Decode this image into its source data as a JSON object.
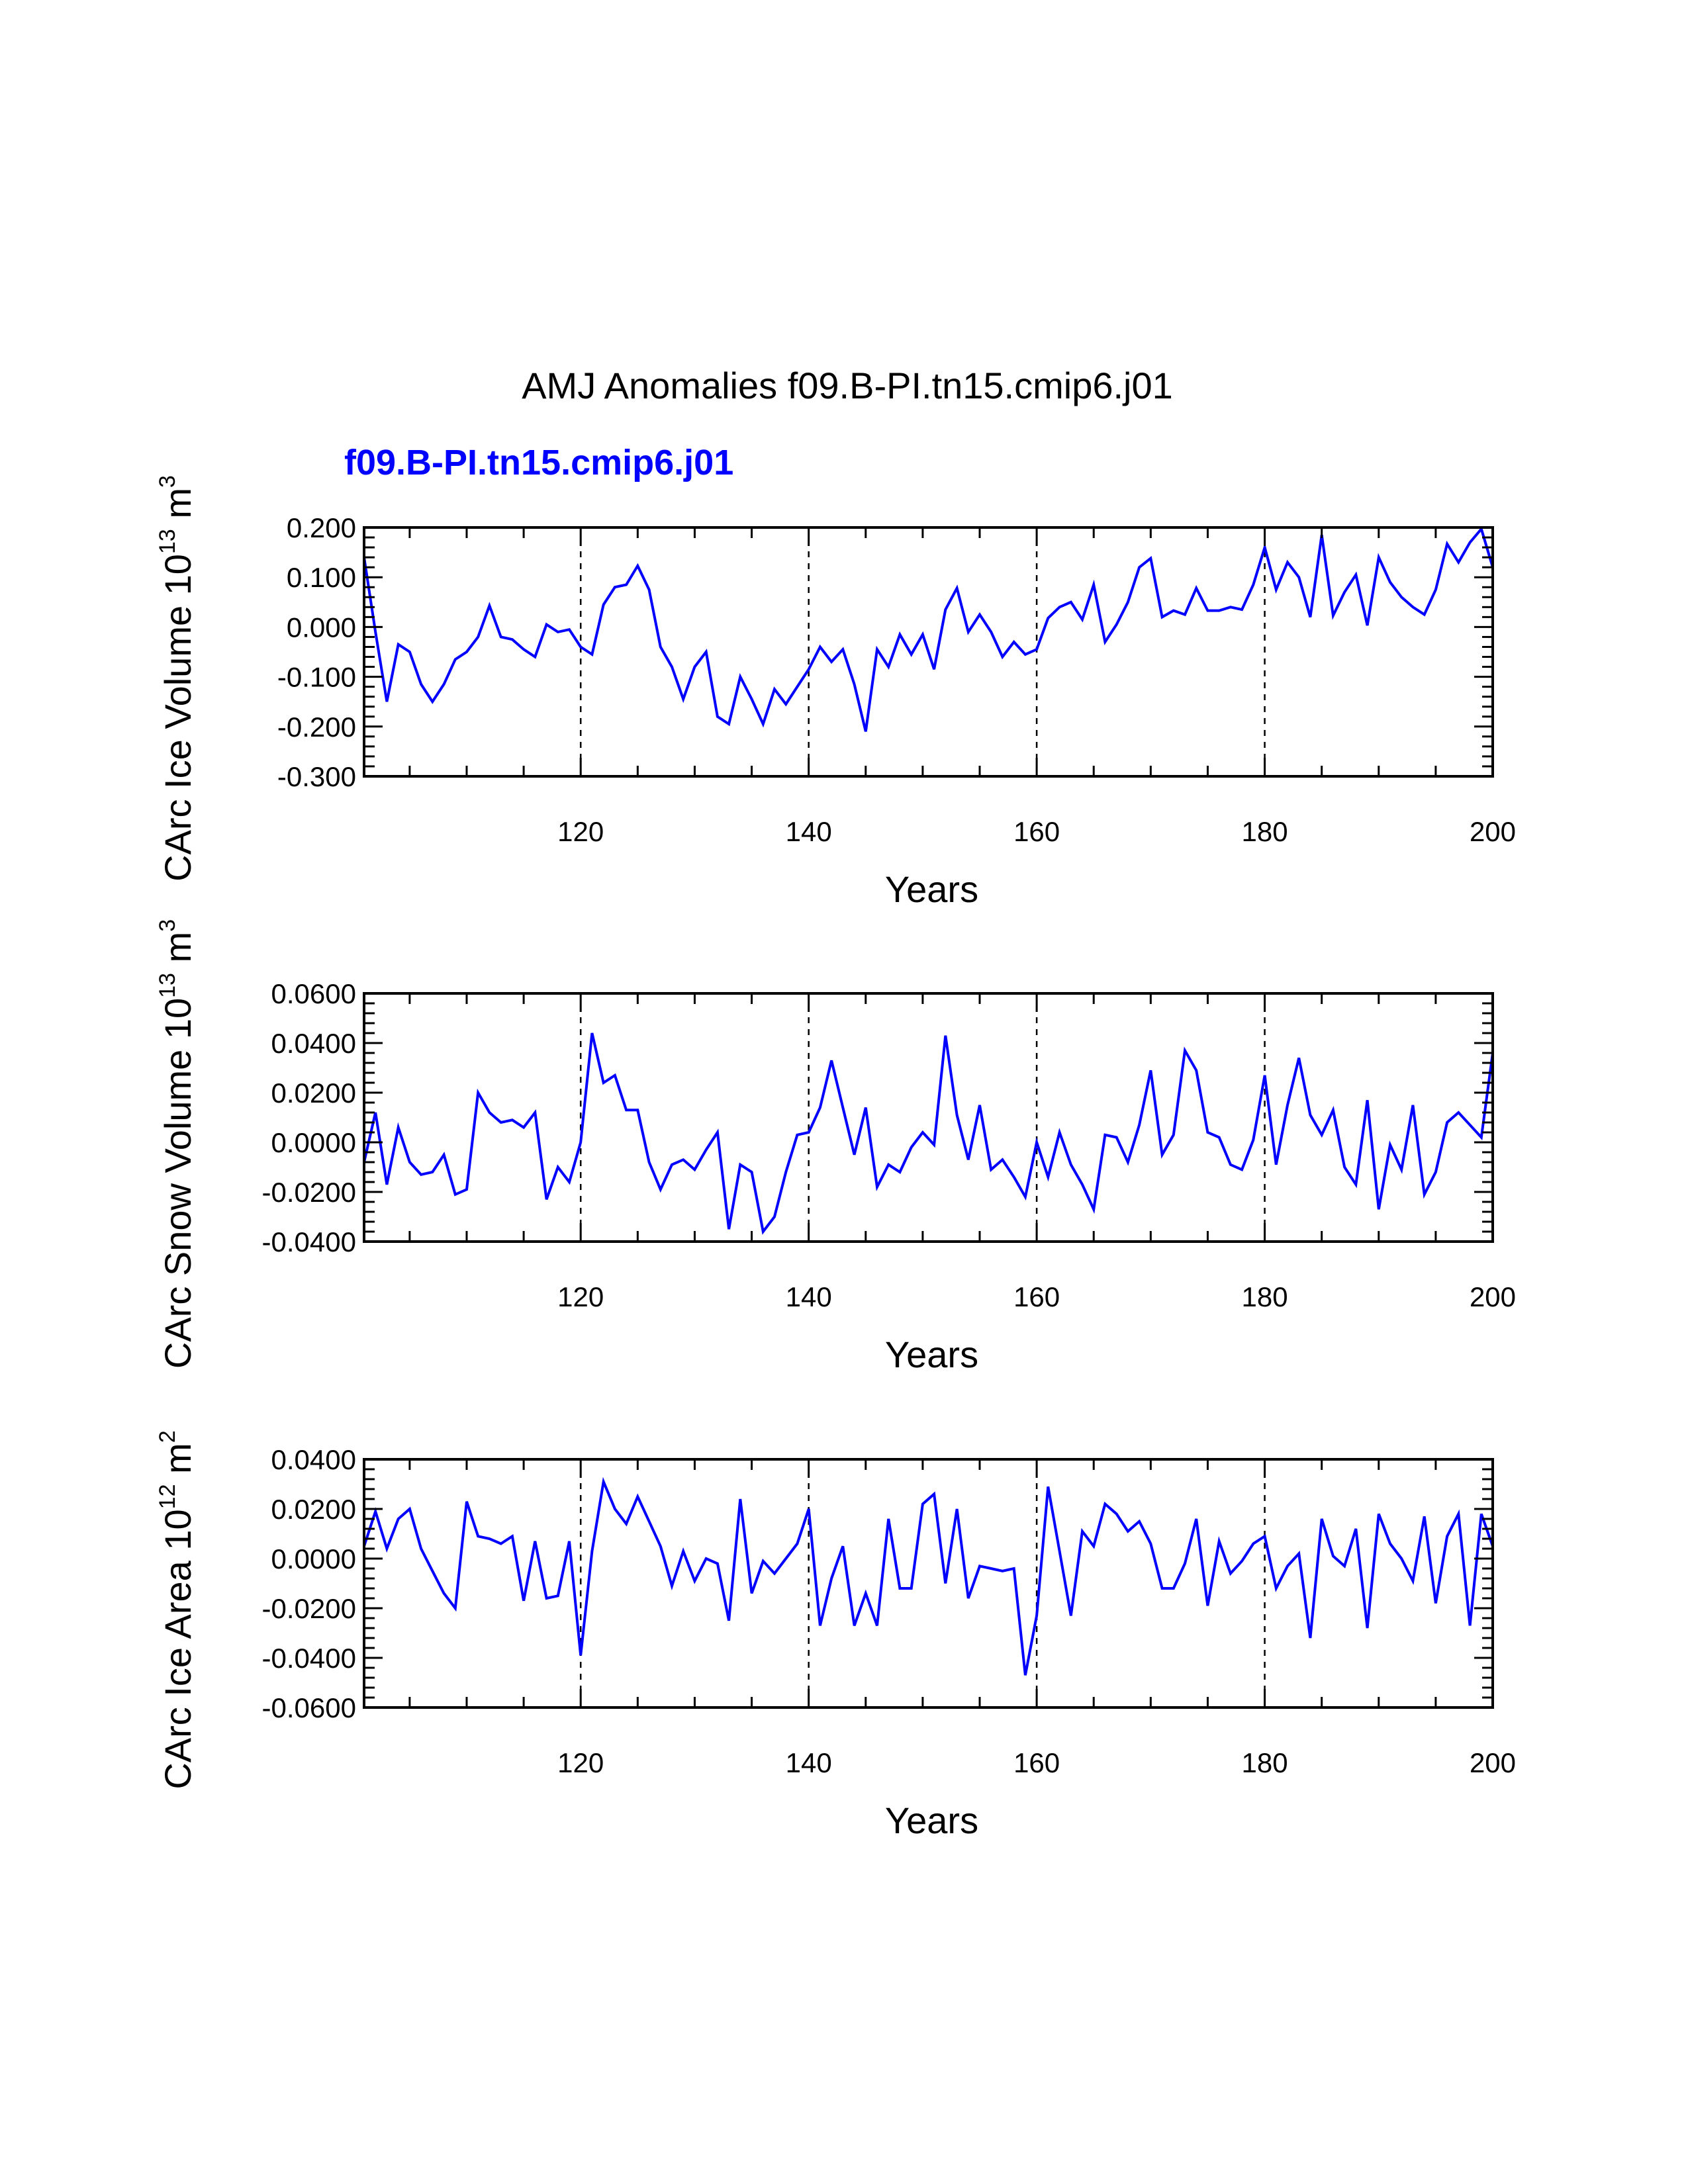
{
  "chart_data": [
    {
      "type": "line",
      "title": "AMJ Anomalies f09.B-PI.tn15.cmip6.j01",
      "subtitle": "f09.B-PI.tn15.cmip6.j01",
      "series_color": "#0000ff",
      "xlabel": "Years",
      "ylabel_main": "CArc Ice Volume 10",
      "ylabel_exp": "13",
      "ylabel_unit": " m",
      "ylabel_unit_exp": "3",
      "xlim": [
        101,
        200
      ],
      "ylim": [
        -0.3,
        0.2
      ],
      "x_ticks": [
        120,
        140,
        160,
        180,
        200
      ],
      "x_tick_labels": [
        "120",
        "140",
        "160",
        "180",
        "200"
      ],
      "y_ticks": [
        -0.3,
        -0.2,
        -0.1,
        0.0,
        0.1,
        0.2
      ],
      "y_tick_labels": [
        "-0.300",
        "-0.200",
        "-0.100",
        "0.000",
        "0.100",
        "0.200"
      ],
      "x_start": 101,
      "values": [
        0.14,
        -0.01,
        -0.15,
        -0.035,
        -0.05,
        -0.115,
        -0.15,
        -0.115,
        -0.065,
        -0.05,
        -0.02,
        0.043,
        -0.02,
        -0.025,
        -0.045,
        -0.06,
        0.005,
        -0.01,
        -0.005,
        -0.04,
        -0.055,
        0.045,
        0.08,
        0.085,
        0.123,
        0.075,
        -0.04,
        -0.08,
        -0.145,
        -0.08,
        -0.05,
        -0.18,
        -0.195,
        -0.1,
        -0.145,
        -0.195,
        -0.125,
        -0.155,
        -0.12,
        -0.085,
        -0.04,
        -0.07,
        -0.045,
        -0.115,
        -0.21,
        -0.045,
        -0.08,
        -0.015,
        -0.055,
        -0.015,
        -0.085,
        0.035,
        0.078,
        -0.01,
        0.025,
        -0.01,
        -0.06,
        -0.03,
        -0.055,
        -0.045,
        0.018,
        0.04,
        0.05,
        0.015,
        0.085,
        -0.03,
        0.005,
        0.05,
        0.12,
        0.138,
        0.02,
        0.033,
        0.025,
        0.078,
        0.033,
        0.033,
        0.04,
        0.035,
        0.085,
        0.16,
        0.075,
        0.13,
        0.1,
        0.02,
        0.185,
        0.023,
        0.07,
        0.105,
        0.003,
        0.14,
        0.09,
        0.06,
        0.04,
        0.025,
        0.075,
        0.167,
        0.13,
        0.17,
        0.197,
        0.12
      ]
    },
    {
      "type": "line",
      "series_color": "#0000ff",
      "xlabel": "Years",
      "ylabel_main": "CArc Snow Volume 10",
      "ylabel_exp": "13",
      "ylabel_unit": " m",
      "ylabel_unit_exp": "3",
      "xlim": [
        101,
        200
      ],
      "ylim": [
        -0.04,
        0.06
      ],
      "x_ticks": [
        120,
        140,
        160,
        180,
        200
      ],
      "x_tick_labels": [
        "120",
        "140",
        "160",
        "180",
        "200"
      ],
      "y_ticks": [
        -0.04,
        -0.02,
        0.0,
        0.02,
        0.04,
        0.06
      ],
      "y_tick_labels": [
        "-0.0400",
        "-0.0200",
        "0.0000",
        "0.0200",
        "0.0400",
        "0.0600"
      ],
      "x_start": 101,
      "values": [
        -0.008,
        0.012,
        -0.017,
        0.006,
        -0.008,
        -0.013,
        -0.012,
        -0.005,
        -0.021,
        -0.019,
        0.02,
        0.012,
        0.008,
        0.009,
        0.006,
        0.012,
        -0.023,
        -0.01,
        -0.016,
        0.0,
        0.044,
        0.024,
        0.027,
        0.013,
        0.013,
        -0.008,
        -0.019,
        -0.009,
        -0.007,
        -0.011,
        -0.003,
        0.004,
        -0.035,
        -0.009,
        -0.012,
        -0.036,
        -0.03,
        -0.012,
        0.003,
        0.004,
        0.014,
        0.033,
        0.014,
        -0.005,
        0.014,
        -0.018,
        -0.009,
        -0.012,
        -0.002,
        0.004,
        -0.001,
        0.043,
        0.011,
        -0.007,
        0.015,
        -0.011,
        -0.007,
        -0.014,
        -0.022,
        0.0,
        -0.014,
        0.004,
        -0.009,
        -0.017,
        -0.027,
        0.003,
        0.002,
        -0.008,
        0.007,
        0.029,
        -0.005,
        0.003,
        0.037,
        0.029,
        0.004,
        0.002,
        -0.009,
        -0.011,
        0.001,
        0.027,
        -0.009,
        0.015,
        0.034,
        0.011,
        0.003,
        0.013,
        -0.01,
        -0.017,
        0.017,
        -0.027,
        -0.001,
        -0.011,
        0.015,
        -0.021,
        -0.012,
        0.008,
        0.012,
        0.007,
        0.002,
        0.036
      ]
    },
    {
      "type": "line",
      "series_color": "#0000ff",
      "xlabel": "Years",
      "ylabel_main": "CArc Ice Area 10",
      "ylabel_exp": "12",
      "ylabel_unit": " m",
      "ylabel_unit_exp": "2",
      "xlim": [
        101,
        200
      ],
      "ylim": [
        -0.06,
        0.04
      ],
      "x_ticks": [
        120,
        140,
        160,
        180,
        200
      ],
      "x_tick_labels": [
        "120",
        "140",
        "160",
        "180",
        "200"
      ],
      "y_ticks": [
        -0.06,
        -0.04,
        -0.02,
        0.0,
        0.02,
        0.04
      ],
      "y_tick_labels": [
        "-0.0600",
        "-0.0400",
        "-0.0200",
        "0.0000",
        "0.0200",
        "0.0400"
      ],
      "x_start": 101,
      "values": [
        0.005,
        0.019,
        0.004,
        0.016,
        0.02,
        0.004,
        -0.005,
        -0.014,
        -0.02,
        0.023,
        0.009,
        0.008,
        0.006,
        0.009,
        -0.017,
        0.007,
        -0.016,
        -0.015,
        0.007,
        -0.039,
        0.003,
        0.031,
        0.02,
        0.014,
        0.025,
        0.015,
        0.005,
        -0.011,
        0.003,
        -0.009,
        0.0,
        -0.002,
        -0.025,
        0.024,
        -0.014,
        -0.001,
        -0.006,
        0.0,
        0.006,
        0.02,
        -0.027,
        -0.008,
        0.005,
        -0.027,
        -0.014,
        -0.027,
        0.016,
        -0.012,
        -0.012,
        0.022,
        0.026,
        -0.01,
        0.02,
        -0.016,
        -0.003,
        -0.004,
        -0.005,
        -0.004,
        -0.047,
        -0.023,
        0.029,
        0.003,
        -0.023,
        0.011,
        0.005,
        0.022,
        0.018,
        0.011,
        0.015,
        0.006,
        -0.012,
        -0.012,
        -0.002,
        0.016,
        -0.019,
        0.007,
        -0.006,
        -0.001,
        0.006,
        0.009,
        -0.012,
        -0.003,
        0.002,
        -0.032,
        0.016,
        0.001,
        -0.003,
        0.012,
        -0.028,
        0.018,
        0.006,
        0.0,
        -0.009,
        0.017,
        -0.018,
        0.009,
        0.018,
        -0.027,
        0.018,
        0.005
      ]
    }
  ]
}
